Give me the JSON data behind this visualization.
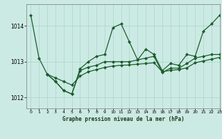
{
  "title": "Graphe pression niveau de la mer (hPa)",
  "background_color": "#cceae4",
  "grid_color": "#aad4cc",
  "line_color": "#1a5c2a",
  "xlim": [
    -0.5,
    23
  ],
  "ylim": [
    1011.7,
    1014.6
  ],
  "yticks": [
    1012,
    1013,
    1014
  ],
  "xtick_labels": [
    "0",
    "1",
    "2",
    "3",
    "4",
    "5",
    "6",
    "7",
    "8",
    "9",
    "10",
    "11",
    "12",
    "13",
    "14",
    "15",
    "16",
    "17",
    "18",
    "19",
    "20",
    "21",
    "22",
    "23"
  ],
  "series": [
    {
      "x": [
        0,
        1,
        2,
        3,
        4,
        5,
        6,
        7,
        8,
        9,
        10,
        11,
        12,
        13,
        14,
        15,
        16,
        17,
        18,
        19,
        20,
        21,
        22,
        23
      ],
      "y": [
        1014.3,
        1013.1,
        1012.65,
        1012.45,
        1012.2,
        1012.1,
        1012.8,
        1013.0,
        1013.15,
        1013.2,
        1013.95,
        1014.05,
        1013.55,
        1013.05,
        1013.35,
        1013.2,
        1012.75,
        1012.95,
        1012.9,
        1013.2,
        1013.15,
        1013.85,
        1014.05,
        1014.3
      ]
    },
    {
      "x": [
        2,
        3,
        4,
        5,
        6,
        7,
        8,
        9,
        10,
        11,
        12,
        13,
        14,
        15,
        16,
        17,
        18,
        19,
        20,
        21,
        22,
        23
      ],
      "y": [
        1012.65,
        1012.45,
        1012.2,
        1012.1,
        1012.75,
        1012.85,
        1012.9,
        1013.0,
        1013.0,
        1013.0,
        1013.0,
        1013.05,
        1013.1,
        1013.15,
        1012.7,
        1012.82,
        1012.82,
        1012.95,
        1013.1,
        1013.15,
        1013.2,
        1013.2
      ]
    },
    {
      "x": [
        2,
        3,
        4,
        5,
        6,
        7,
        8,
        9,
        10,
        11,
        12,
        13,
        14,
        15,
        16,
        17,
        18,
        19,
        20,
        21,
        22,
        23
      ],
      "y": [
        1012.65,
        1012.55,
        1012.45,
        1012.35,
        1012.6,
        1012.72,
        1012.78,
        1012.84,
        1012.88,
        1012.9,
        1012.91,
        1012.93,
        1012.95,
        1012.97,
        1012.72,
        1012.76,
        1012.78,
        1012.83,
        1012.97,
        1013.02,
        1013.07,
        1013.12
      ]
    }
  ]
}
